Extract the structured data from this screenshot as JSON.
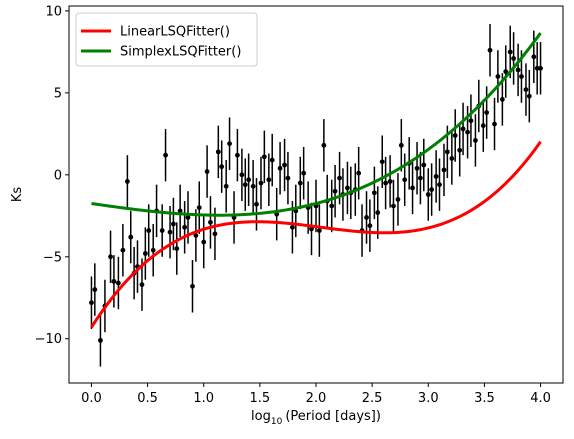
{
  "chart_data": {
    "type": "scatter",
    "title": "",
    "xlabel_base": "log",
    "xlabel_sub": "10",
    "xlabel_rest": "(Period [days])",
    "ylabel": "Ks",
    "xlim": [
      -0.2,
      4.2
    ],
    "ylim": [
      -12.7,
      10.3
    ],
    "xticks": [
      0.0,
      0.5,
      1.0,
      1.5,
      2.0,
      2.5,
      3.0,
      3.5,
      4.0
    ],
    "xtick_labels": [
      "0.0",
      "0.5",
      "1.0",
      "1.5",
      "2.0",
      "2.5",
      "3.0",
      "3.5",
      "4.0"
    ],
    "yticks": [
      10,
      5,
      0,
      -5,
      -10
    ],
    "ytick_labels": [
      "10",
      "5",
      "0",
      "−5",
      "−10"
    ],
    "grid": false,
    "legend_position": "top-left",
    "series": [
      {
        "name": "LinearLSQFitter()",
        "color": "#ff0000",
        "line_width": 3,
        "model": {
          "kind": "cubic",
          "coeffs": [
            -9.3,
            10.75,
            -5.7,
            0.93
          ]
        }
      },
      {
        "name": "SimplexLSQFitter()",
        "color": "#008000",
        "line_width": 3,
        "model": {
          "kind": "cubic",
          "coeffs": [
            -1.75,
            -1.0,
            0.1,
            0.2
          ]
        }
      }
    ],
    "points": {
      "color": "#000000",
      "x": [
        0.0,
        0.03,
        0.08,
        0.12,
        0.17,
        0.2,
        0.24,
        0.28,
        0.32,
        0.35,
        0.38,
        0.41,
        0.45,
        0.48,
        0.51,
        0.55,
        0.58,
        0.63,
        0.66,
        0.7,
        0.73,
        0.76,
        0.79,
        0.83,
        0.86,
        0.9,
        0.93,
        0.96,
        1.0,
        1.03,
        1.06,
        1.1,
        1.13,
        1.16,
        1.2,
        1.23,
        1.27,
        1.3,
        1.34,
        1.37,
        1.4,
        1.44,
        1.47,
        1.51,
        1.54,
        1.58,
        1.61,
        1.65,
        1.68,
        1.72,
        1.75,
        1.79,
        1.82,
        1.86,
        1.89,
        1.93,
        1.96,
        2.0,
        2.03,
        2.07,
        2.1,
        2.14,
        2.17,
        2.21,
        2.24,
        2.28,
        2.31,
        2.35,
        2.38,
        2.41,
        2.45,
        2.48,
        2.52,
        2.55,
        2.59,
        2.62,
        2.66,
        2.69,
        2.73,
        2.76,
        2.79,
        2.83,
        2.86,
        2.9,
        2.93,
        2.96,
        3.0,
        3.03,
        3.07,
        3.1,
        3.14,
        3.17,
        3.21,
        3.24,
        3.28,
        3.31,
        3.35,
        3.38,
        3.42,
        3.45,
        3.49,
        3.52,
        3.55,
        3.59,
        3.62,
        3.66,
        3.69,
        3.73,
        3.76,
        3.8,
        3.83,
        3.87,
        3.9,
        3.94,
        3.97,
        4.0
      ],
      "y": [
        -7.8,
        -7.0,
        -10.1,
        -8.0,
        -5.0,
        -6.5,
        -6.6,
        -4.6,
        -0.4,
        -3.8,
        -6.0,
        -5.6,
        -6.7,
        -4.8,
        -3.4,
        -4.6,
        -2.2,
        -3.4,
        1.2,
        -3.5,
        -3.0,
        -4.5,
        -2.2,
        -3.2,
        -2.6,
        -6.8,
        -3.7,
        -2.0,
        -4.1,
        0.2,
        -2.9,
        -3.6,
        1.4,
        0.5,
        -0.7,
        1.9,
        -2.6,
        1.2,
        0.0,
        -0.6,
        -0.3,
        -0.7,
        -1.8,
        -0.5,
        1.1,
        -0.3,
        0.9,
        -2.4,
        0.4,
        0.6,
        -0.2,
        -3.2,
        -2.2,
        -0.5,
        0.1,
        -2.0,
        -3.3,
        -1.9,
        -3.4,
        1.8,
        -1.6,
        -1.9,
        -1.0,
        -0.2,
        -1.2,
        -0.8,
        -1.1,
        -0.9,
        0.1,
        -3.4,
        -2.6,
        -3.1,
        -1.1,
        -2.3,
        0.8,
        -0.5,
        -0.4,
        -1.9,
        -1.5,
        1.8,
        -0.3,
        0.7,
        -0.8,
        0.4,
        -0.2,
        0.6,
        -1.2,
        -0.9,
        -0.1,
        -0.6,
        0.3,
        1.4,
        1.0,
        2.4,
        1.5,
        2.8,
        2.6,
        3.3,
        2.1,
        4.2,
        3.0,
        3.8,
        7.6,
        3.1,
        6.0,
        4.6,
        6.3,
        7.5,
        7.1,
        6.4,
        6.0,
        5.2,
        4.8,
        7.2,
        6.5,
        6.5
      ],
      "yerr": 1.6
    }
  }
}
